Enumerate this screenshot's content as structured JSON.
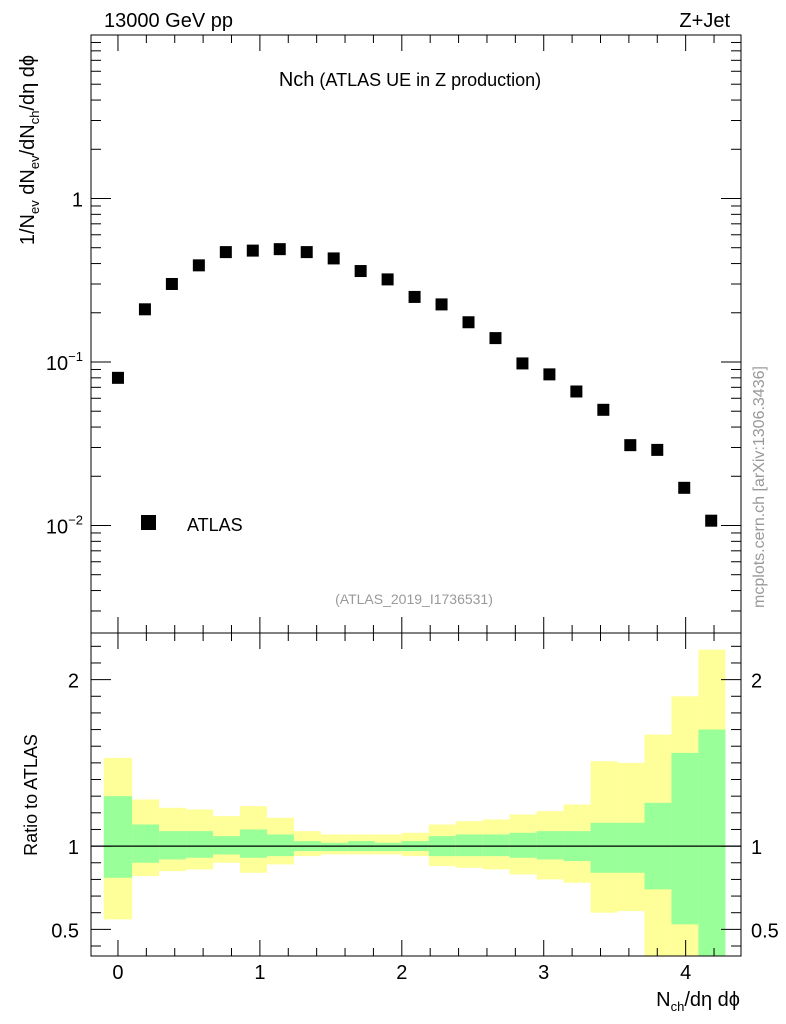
{
  "header": {
    "left": "13000 GeV pp",
    "right": "Z+Jet"
  },
  "side_label": "mcplots.cern.ch [arXiv:1306.3436]",
  "reference": "(ATLAS_2019_I1736531)",
  "colors": {
    "band_outer": "#ffff99",
    "band_inner": "#99ff99",
    "data": "#000000"
  },
  "chart_data": [
    {
      "type": "scatter",
      "panel": "main",
      "title_main": "Nch",
      "title_sub": "(ATLAS UE in Z production)",
      "ylabel": {
        "a": "1/N",
        "a_sub": "ev",
        "b": " dN",
        "b_sub": "ev",
        "c": "/dN",
        "c_sub": "ch",
        "d": "/dη dϕ"
      },
      "yscale": "log",
      "ylim": [
        0.0022,
        10
      ],
      "yticks": [
        {
          "value": 1,
          "label": "1"
        },
        {
          "value": 0.1,
          "base": "10",
          "exp": "−1"
        },
        {
          "value": 0.01,
          "base": "10",
          "exp": "−2"
        }
      ],
      "xlim": [
        -0.19,
        4.39
      ],
      "legend": {
        "label": "ATLAS",
        "position": "lower-left"
      },
      "series": [
        {
          "name": "ATLAS",
          "x": [
            0.0,
            0.19,
            0.38,
            0.57,
            0.76,
            0.95,
            1.14,
            1.33,
            1.52,
            1.71,
            1.9,
            2.09,
            2.28,
            2.47,
            2.66,
            2.85,
            3.04,
            3.23,
            3.42,
            3.61,
            3.8,
            3.99,
            4.18
          ],
          "values": [
            0.08,
            0.21,
            0.3,
            0.39,
            0.47,
            0.48,
            0.49,
            0.47,
            0.43,
            0.36,
            0.32,
            0.25,
            0.225,
            0.175,
            0.14,
            0.098,
            0.084,
            0.066,
            0.051,
            0.031,
            0.029,
            0.017,
            0.0107
          ]
        }
      ]
    },
    {
      "type": "area",
      "panel": "ratio",
      "ylabel": "Ratio to ATLAS",
      "ylim": [
        0.34,
        2.28
      ],
      "yticks": [
        {
          "value": 0.5,
          "label": "0.5"
        },
        {
          "value": 1,
          "label": "1"
        },
        {
          "value": 2,
          "label": "2"
        }
      ],
      "xlabel": {
        "a": "N",
        "a_sub": "ch",
        "b": "/dη dϕ"
      },
      "xlim": [
        -0.19,
        4.39
      ],
      "xticks": [
        {
          "value": 0,
          "label": "0"
        },
        {
          "value": 1,
          "label": "1"
        },
        {
          "value": 2,
          "label": "2"
        },
        {
          "value": 3,
          "label": "3"
        },
        {
          "value": 4,
          "label": "4"
        }
      ],
      "bins": [
        {
          "lo": -0.1,
          "hi": 0.1,
          "outer": [
            0.56,
            1.53
          ],
          "inner": [
            0.81,
            1.3
          ]
        },
        {
          "lo": 0.1,
          "hi": 0.29,
          "outer": [
            0.82,
            1.28
          ],
          "inner": [
            0.9,
            1.13
          ]
        },
        {
          "lo": 0.29,
          "hi": 0.48,
          "outer": [
            0.85,
            1.23
          ],
          "inner": [
            0.92,
            1.09
          ]
        },
        {
          "lo": 0.48,
          "hi": 0.67,
          "outer": [
            0.86,
            1.22
          ],
          "inner": [
            0.93,
            1.09
          ]
        },
        {
          "lo": 0.67,
          "hi": 0.86,
          "outer": [
            0.9,
            1.18
          ],
          "inner": [
            0.95,
            1.06
          ]
        },
        {
          "lo": 0.86,
          "hi": 1.05,
          "outer": [
            0.84,
            1.24
          ],
          "inner": [
            0.93,
            1.1
          ]
        },
        {
          "lo": 1.05,
          "hi": 1.24,
          "outer": [
            0.89,
            1.17
          ],
          "inner": [
            0.94,
            1.07
          ]
        },
        {
          "lo": 1.24,
          "hi": 1.43,
          "outer": [
            0.94,
            1.09
          ],
          "inner": [
            0.97,
            1.03
          ]
        },
        {
          "lo": 1.43,
          "hi": 1.62,
          "outer": [
            0.95,
            1.07
          ],
          "inner": [
            0.97,
            1.02
          ]
        },
        {
          "lo": 1.62,
          "hi": 1.81,
          "outer": [
            0.95,
            1.07
          ],
          "inner": [
            0.97,
            1.03
          ]
        },
        {
          "lo": 1.81,
          "hi": 2.0,
          "outer": [
            0.95,
            1.07
          ],
          "inner": [
            0.97,
            1.02
          ]
        },
        {
          "lo": 2.0,
          "hi": 2.19,
          "outer": [
            0.94,
            1.08
          ],
          "inner": [
            0.97,
            1.03
          ]
        },
        {
          "lo": 2.19,
          "hi": 2.38,
          "outer": [
            0.88,
            1.13
          ],
          "inner": [
            0.94,
            1.06
          ]
        },
        {
          "lo": 2.38,
          "hi": 2.57,
          "outer": [
            0.87,
            1.15
          ],
          "inner": [
            0.94,
            1.07
          ]
        },
        {
          "lo": 2.57,
          "hi": 2.76,
          "outer": [
            0.86,
            1.16
          ],
          "inner": [
            0.94,
            1.07
          ]
        },
        {
          "lo": 2.76,
          "hi": 2.95,
          "outer": [
            0.83,
            1.19
          ],
          "inner": [
            0.93,
            1.08
          ]
        },
        {
          "lo": 2.95,
          "hi": 3.14,
          "outer": [
            0.8,
            1.21
          ],
          "inner": [
            0.92,
            1.09
          ]
        },
        {
          "lo": 3.14,
          "hi": 3.33,
          "outer": [
            0.78,
            1.25
          ],
          "inner": [
            0.91,
            1.09
          ]
        },
        {
          "lo": 3.33,
          "hi": 3.52,
          "outer": [
            0.6,
            1.51
          ],
          "inner": [
            0.84,
            1.14
          ]
        },
        {
          "lo": 3.52,
          "hi": 3.71,
          "outer": [
            0.61,
            1.5
          ],
          "inner": [
            0.84,
            1.14
          ]
        },
        {
          "lo": 3.71,
          "hi": 3.9,
          "outer": [
            0.3,
            1.67
          ],
          "inner": [
            0.74,
            1.26
          ]
        },
        {
          "lo": 3.9,
          "hi": 4.09,
          "outer": [
            0.3,
            1.9
          ],
          "inner": [
            0.53,
            1.56
          ]
        },
        {
          "lo": 4.09,
          "hi": 4.28,
          "outer": [
            0.3,
            2.18
          ],
          "inner": [
            0.3,
            1.7
          ]
        }
      ]
    }
  ]
}
